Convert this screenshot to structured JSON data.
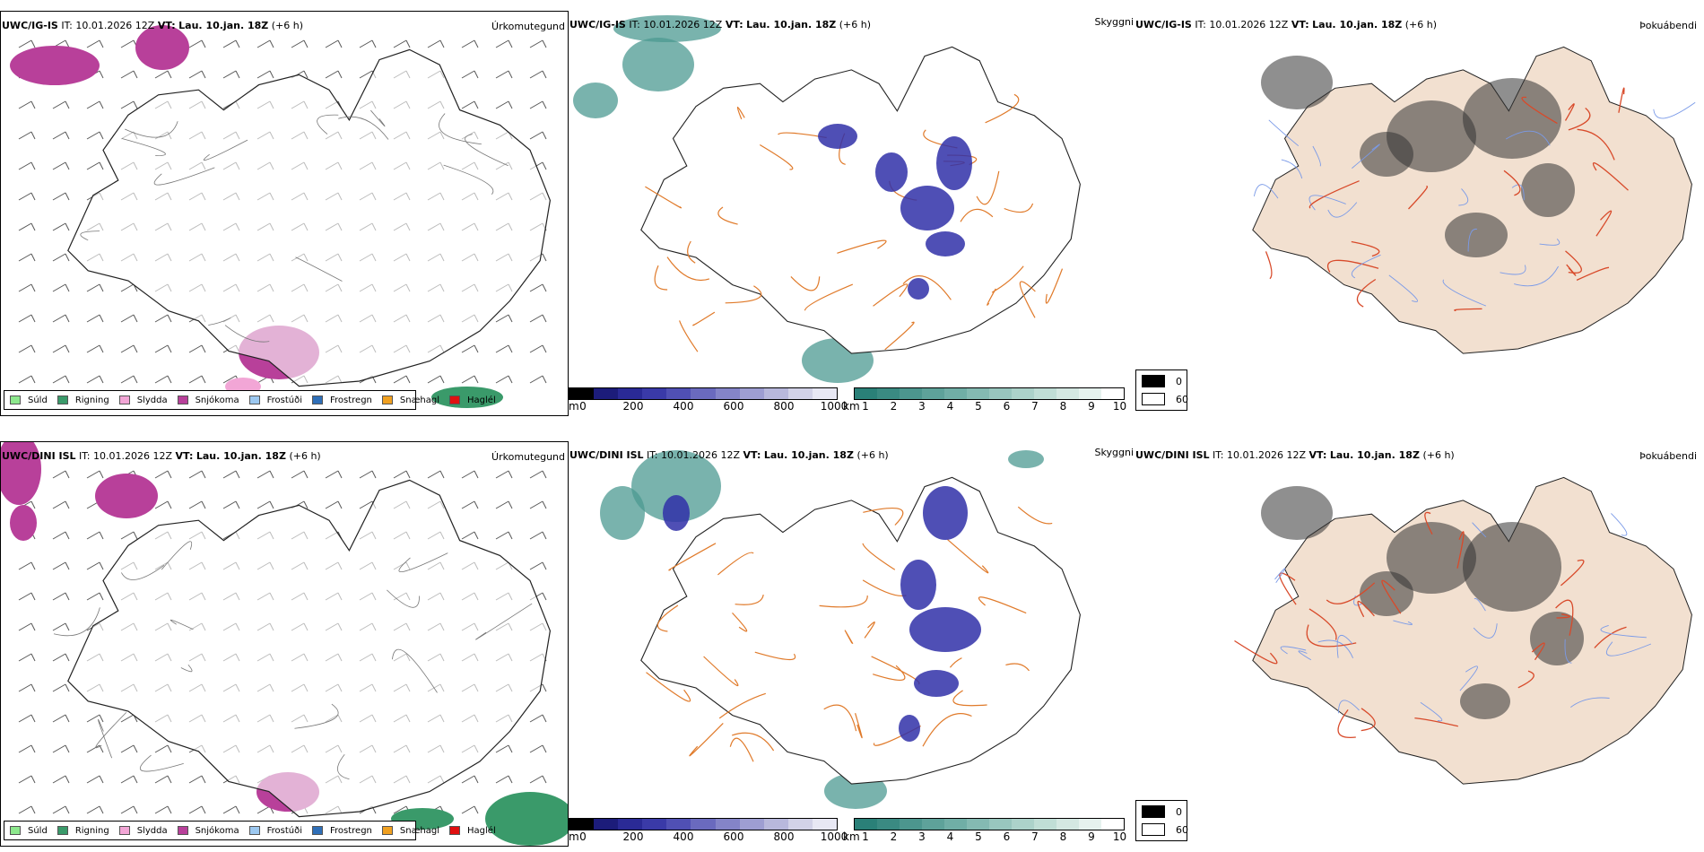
{
  "rows": [
    {
      "model": "UWC/IG-IS",
      "it_label": "IT:",
      "it_value": "10.01.2026 12Z",
      "vt_label": "VT:",
      "vt_value": "Lau. 10.jan. 18Z",
      "offset": "(+6 h)"
    },
    {
      "model": "UWC/DINI ISL",
      "it_label": "IT:",
      "it_value": "10.01.2026 12Z",
      "vt_label": "VT:",
      "vt_value": "Lau. 10.jan. 18Z",
      "offset": "(+6 h)"
    }
  ],
  "panel_titles": {
    "precip": "Úrkomutegund",
    "visibility": "Skyggni",
    "fog": "Þokuábendi"
  },
  "precip_legend": [
    {
      "label": "Súld",
      "color": "#8de88d"
    },
    {
      "label": "Rigning",
      "color": "#3a9a6a"
    },
    {
      "label": "Slydda",
      "color": "#f2a6d6"
    },
    {
      "label": "Snjókoma",
      "color": "#b8409a"
    },
    {
      "label": "Frostúði",
      "color": "#9cc8f0"
    },
    {
      "label": "Frostregn",
      "color": "#2f6fb8"
    },
    {
      "label": "Snæhagl",
      "color": "#f0a020"
    },
    {
      "label": "Haglél",
      "color": "#e01010"
    }
  ],
  "visibility_legend": {
    "m_unit": "m",
    "m_ticks": [
      "0",
      "200",
      "400",
      "600",
      "800",
      "1000"
    ],
    "m_colors": [
      "#000000",
      "#1c1c7a",
      "#2a2a96",
      "#3a3aa8",
      "#5050b4",
      "#6a6abe",
      "#8484c8",
      "#9e9ed2",
      "#b8b8dc",
      "#d2d2e8",
      "#e8e8f4"
    ],
    "km_unit": "km",
    "km_ticks": [
      "1",
      "2",
      "3",
      "4",
      "5",
      "6",
      "7",
      "8",
      "9",
      "10"
    ],
    "km_colors": [
      "#2a8078",
      "#3a8a82",
      "#4c968e",
      "#5ea29a",
      "#70aea6",
      "#84bab2",
      "#98c6be",
      "#acd2ca",
      "#c0ded6",
      "#d4e8e2",
      "#e6f2ee",
      "#ffffff"
    ]
  },
  "fog_legend": [
    {
      "label": "0",
      "color": "#000000"
    },
    {
      "label": "60",
      "color": "#ffffff"
    }
  ],
  "colors": {
    "coast": "#222222",
    "roads": "#e07a2a",
    "fog_land": "#f2e0d0",
    "fog_roads": "#d84a2a",
    "rivers": "#7a9ae8",
    "snow": "#b8409a",
    "rain": "#3a9a6a",
    "vis_blue": "#3030a8",
    "vis_teal": "#4c9a92"
  }
}
